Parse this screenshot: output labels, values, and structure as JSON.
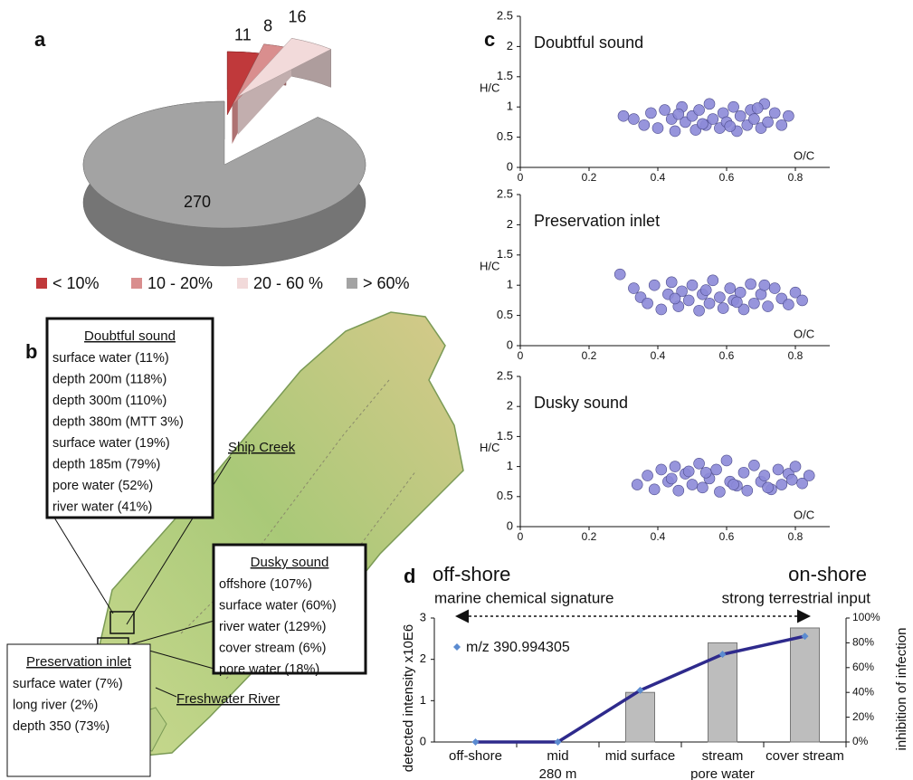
{
  "chart_data": [
    {
      "type": "pie",
      "panel": "a",
      "categories": [
        "< 10%",
        "10 - 20%",
        "20 - 60 %",
        "> 60%"
      ],
      "values": [
        11,
        8,
        16,
        270
      ],
      "colors": [
        "#c0393b",
        "#d98e8e",
        "#f2dada",
        "#a3a3a3"
      ],
      "legend": "bottom"
    },
    {
      "type": "scatter",
      "panel": "c",
      "title": "Doubtful sound",
      "xlabel": "O/C",
      "ylabel": "H/C",
      "color": "#8c8ad8",
      "x": [
        0.3,
        0.33,
        0.36,
        0.38,
        0.4,
        0.42,
        0.44,
        0.45,
        0.47,
        0.48,
        0.5,
        0.51,
        0.52,
        0.54,
        0.55,
        0.56,
        0.58,
        0.59,
        0.6,
        0.62,
        0.63,
        0.64,
        0.66,
        0.67,
        0.68,
        0.7,
        0.71,
        0.72,
        0.74,
        0.76,
        0.78,
        0.46,
        0.53,
        0.61,
        0.69
      ],
      "values": [
        0.85,
        0.8,
        0.7,
        0.9,
        0.65,
        0.95,
        0.8,
        0.6,
        1.0,
        0.75,
        0.85,
        0.62,
        0.95,
        0.7,
        1.05,
        0.8,
        0.65,
        0.9,
        0.75,
        1.0,
        0.6,
        0.85,
        0.7,
        0.95,
        0.8,
        0.65,
        1.05,
        0.75,
        0.9,
        0.7,
        0.85,
        0.88,
        0.72,
        0.68,
        0.98
      ],
      "xlim": [
        0,
        0.9
      ],
      "xticks": [
        0,
        0.2,
        0.4,
        0.6,
        0.8
      ],
      "ylim": [
        0,
        2.5
      ],
      "yticks": [
        0,
        0.5,
        1,
        1.5,
        2,
        2.5
      ]
    },
    {
      "type": "scatter",
      "title": "Preservation inlet",
      "xlabel": "O/C",
      "ylabel": "H/C",
      "color": "#8c8ad8",
      "x": [
        0.29,
        0.33,
        0.35,
        0.37,
        0.39,
        0.41,
        0.43,
        0.44,
        0.46,
        0.47,
        0.49,
        0.5,
        0.52,
        0.53,
        0.55,
        0.56,
        0.58,
        0.59,
        0.61,
        0.62,
        0.64,
        0.65,
        0.67,
        0.68,
        0.7,
        0.72,
        0.74,
        0.76,
        0.78,
        0.8,
        0.82,
        0.45,
        0.54,
        0.63,
        0.71
      ],
      "values": [
        1.18,
        0.95,
        0.8,
        0.7,
        1.0,
        0.6,
        0.85,
        1.05,
        0.65,
        0.9,
        0.75,
        1.0,
        0.58,
        0.85,
        0.7,
        1.08,
        0.8,
        0.62,
        0.95,
        0.75,
        0.88,
        0.6,
        1.02,
        0.7,
        0.85,
        0.65,
        0.95,
        0.78,
        0.68,
        0.88,
        0.75,
        0.78,
        0.92,
        0.72,
        1.0
      ],
      "xlim": [
        0,
        0.9
      ],
      "xticks": [
        0,
        0.2,
        0.4,
        0.6,
        0.8
      ],
      "ylim": [
        0,
        2.5
      ],
      "yticks": [
        0,
        0.5,
        1,
        1.5,
        2,
        2.5
      ]
    },
    {
      "type": "scatter",
      "title": "Dusky sound",
      "xlabel": "O/C",
      "ylabel": "H/C",
      "color": "#8c8ad8",
      "x": [
        0.34,
        0.37,
        0.39,
        0.41,
        0.43,
        0.45,
        0.46,
        0.48,
        0.5,
        0.52,
        0.53,
        0.55,
        0.57,
        0.58,
        0.6,
        0.61,
        0.63,
        0.65,
        0.66,
        0.68,
        0.7,
        0.71,
        0.73,
        0.75,
        0.76,
        0.78,
        0.8,
        0.82,
        0.84,
        0.44,
        0.54,
        0.62,
        0.72,
        0.79,
        0.49
      ],
      "values": [
        0.7,
        0.85,
        0.62,
        0.95,
        0.75,
        1.0,
        0.6,
        0.88,
        0.7,
        1.05,
        0.65,
        0.8,
        0.95,
        0.58,
        1.1,
        0.75,
        0.68,
        0.9,
        0.6,
        1.02,
        0.75,
        0.85,
        0.62,
        0.95,
        0.7,
        0.88,
        1.0,
        0.72,
        0.85,
        0.8,
        0.9,
        0.7,
        0.65,
        0.78,
        0.92
      ],
      "xlim": [
        0,
        0.9
      ],
      "xticks": [
        0,
        0.2,
        0.4,
        0.6,
        0.8
      ],
      "ylim": [
        0,
        2.5
      ],
      "yticks": [
        0,
        0.5,
        1,
        1.5,
        2,
        2.5
      ]
    },
    {
      "type": "combo",
      "panel": "d",
      "annotations": [
        "off-shore",
        "on-shore",
        "marine chemical signature",
        "strong terrestrial input"
      ],
      "ylabel": "detected intensity x10E6",
      "y2label": "inhibition of infection",
      "categories": [
        [
          "off-shore"
        ],
        [
          "mid",
          "280 m"
        ],
        [
          "mid surface"
        ],
        [
          "stream",
          "pore water"
        ],
        [
          "cover stream"
        ]
      ],
      "series": [
        {
          "name": "m/z 390.994305",
          "type": "line",
          "color": "#2e2a8c",
          "marker_color": "#5b8bd0",
          "values": [
            0,
            0,
            1.25,
            2.12,
            2.56
          ]
        },
        {
          "type": "bar",
          "axis": "y2",
          "color": "#bdbdbd",
          "values": [
            0,
            0,
            40,
            80,
            92
          ]
        }
      ],
      "ylim": [
        0,
        3
      ],
      "yticks": [
        0,
        1,
        2,
        3
      ],
      "y2lim": [
        0,
        100
      ],
      "y2ticks": [
        {
          "value": 0,
          "label": "0%"
        },
        {
          "value": 20,
          "label": "20%"
        },
        {
          "value": 40,
          "label": "40%"
        },
        {
          "value": 60,
          "label": "60%"
        },
        {
          "value": 80,
          "label": "80%"
        },
        {
          "value": 100,
          "label": "100%"
        }
      ],
      "legend": "upper left"
    }
  ],
  "map": {
    "panel": "b",
    "boxes": [
      {
        "title": "Doubtful sound",
        "items": [
          {
            "text": "surface water (11%)",
            "color": "#e8534e"
          },
          {
            "text": "depth 200m (118%)",
            "color": "#111111"
          },
          {
            "text": "depth 300m (110%)",
            "color": "#111111"
          },
          {
            "text": "depth 380m (MTT 3%)",
            "color": "#111111"
          },
          {
            "text": "surface water (19%)",
            "color": "#e8534e"
          },
          {
            "text": "depth 185m (79%)",
            "color": "#111111"
          },
          {
            "text": "pore water (52%)",
            "color": "#111111"
          },
          {
            "text": "river water (41%)",
            "color": "#111111"
          }
        ]
      },
      {
        "title": "Dusky sound",
        "items": [
          {
            "text": "offshore (107%)",
            "color": "#111111"
          },
          {
            "text": "surface water (60%)",
            "color": "#111111"
          },
          {
            "text": "river water (129%)",
            "color": "#111111"
          },
          {
            "text": "cover stream (6%)",
            "color": "#8b1a1a"
          },
          {
            "text": "pore water (18%)",
            "color": "#e8534e"
          }
        ]
      },
      {
        "title": "Preservation inlet",
        "items": [
          {
            "text": "surface water (7%)",
            "color": "#8b1a1a"
          },
          {
            "text": "long river (2%)",
            "color": "#8b1a1a"
          },
          {
            "text": "depth 350 (73%)",
            "color": "#111111"
          }
        ]
      }
    ],
    "places": [
      "Ship Creek",
      "Freshwater River"
    ]
  }
}
